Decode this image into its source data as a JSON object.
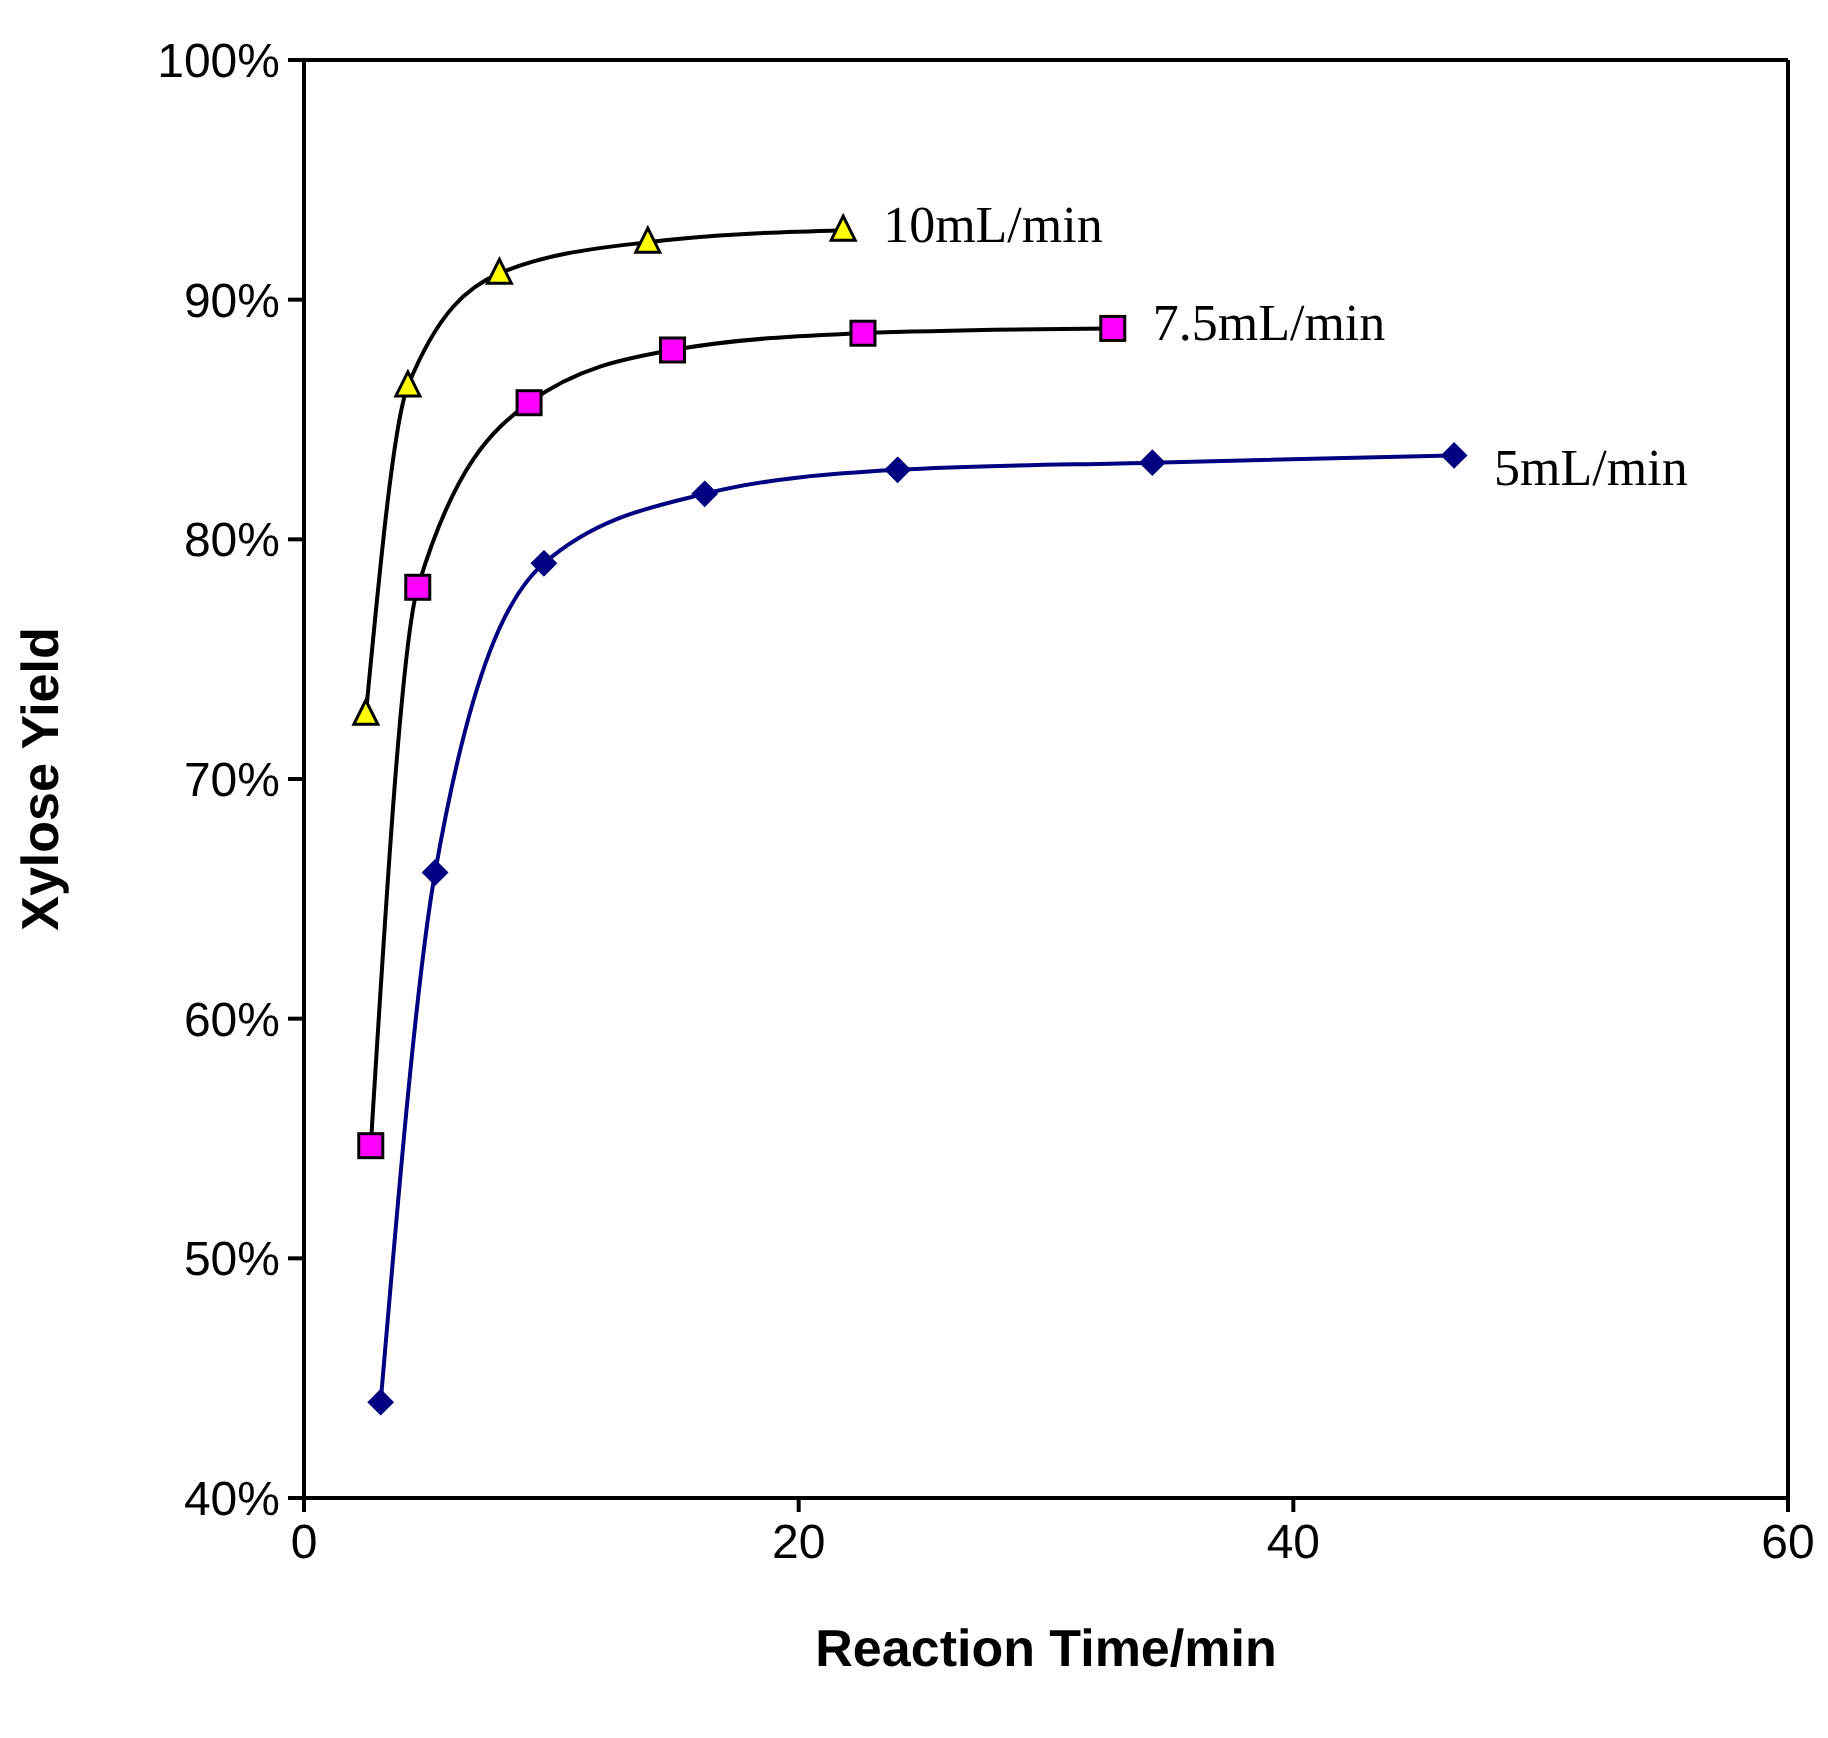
{
  "chart_data": {
    "type": "line",
    "xlabel": "Reaction Time/min",
    "ylabel": "Xylose Yield",
    "xlim": [
      0,
      60
    ],
    "xticks": [
      0,
      20,
      40,
      60
    ],
    "ylim": [
      40,
      100
    ],
    "yticks": [
      {
        "value": 40,
        "label": "40%"
      },
      {
        "value": 50,
        "label": "50%"
      },
      {
        "value": 60,
        "label": "60%"
      },
      {
        "value": 70,
        "label": "70%"
      },
      {
        "value": 80,
        "label": "80%"
      },
      {
        "value": 90,
        "label": "90%"
      },
      {
        "value": 100,
        "label": "100%"
      }
    ],
    "series": [
      {
        "name": "10mL/min",
        "color": "#ffff00",
        "marker": "triangle",
        "x": [
          2.5,
          4.2,
          7.9,
          13.9,
          21.8
        ],
        "values": [
          72.7,
          86.4,
          91.1,
          92.4,
          92.9
        ]
      },
      {
        "name": "7.5mL/min",
        "color": "#ff00ff",
        "marker": "square",
        "x": [
          2.7,
          4.6,
          9.1,
          14.9,
          22.6,
          32.7
        ],
        "values": [
          54.7,
          78.0,
          85.7,
          87.9,
          88.6,
          88.8
        ]
      },
      {
        "name": "5mL/min",
        "color": "#000080",
        "marker": "diamond",
        "x": [
          3.1,
          5.3,
          9.7,
          16.2,
          24.0,
          34.3,
          46.5
        ],
        "values": [
          44.0,
          66.1,
          79.0,
          81.9,
          82.9,
          83.2,
          83.5
        ]
      }
    ]
  }
}
